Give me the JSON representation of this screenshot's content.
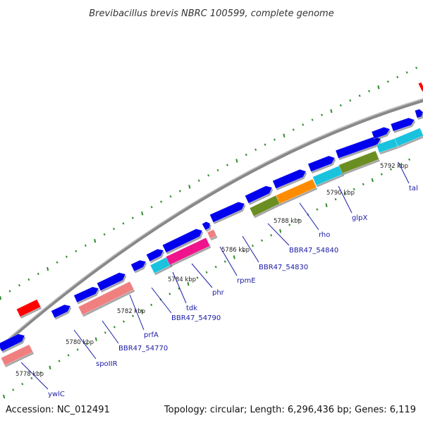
{
  "title": "Brevibacillus brevis NBRC 100599, complete genome",
  "footer": {
    "accession": "Accession: NC_012491",
    "summary": "Topology: circular; Length: 6,296,436 bp; Genes: 6,119"
  },
  "colors": {
    "cds": "#0000ee",
    "rrna_like": "#ff0000",
    "cyan": "#19c3de",
    "pink": "#f08080",
    "magenta": "#f0148c",
    "olive": "#6b8e23",
    "orange": "#ff8c00",
    "tick": "#2e8b2e",
    "backbone": "#888888"
  },
  "ticks": [
    "5778 kbp",
    "5780 kbp",
    "5782 kbp",
    "5784 kbp",
    "5786 kbp",
    "5788 kbp",
    "5790 kbp",
    "5792 kbp"
  ],
  "genes": [
    "ywlC",
    "spoIIR",
    "BBR47_54770",
    "prfA",
    "BBR47_54790",
    "tdk",
    "phr",
    "rpmE",
    "BBR47_54830",
    "BBR47_54840",
    "rho",
    "glpX",
    "tal"
  ]
}
